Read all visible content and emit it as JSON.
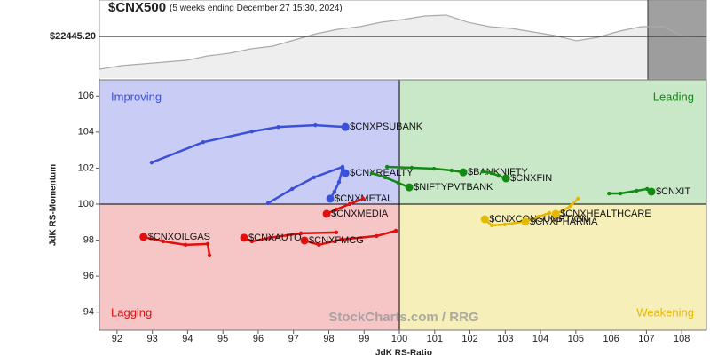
{
  "chart_data": [
    {
      "type": "line",
      "title": "$CNX500",
      "subtitle": "(5 weeks ending December 27 15:30, 2024)",
      "values": [
        21780,
        21852,
        21888,
        21924,
        21960,
        22051,
        22105,
        22195,
        22249,
        22375,
        22501,
        22591,
        22645,
        22735,
        22790,
        22862,
        22880,
        22735,
        22645,
        22609,
        22537,
        22465,
        22358,
        22429,
        22555,
        22645,
        22645,
        22429,
        22465
      ],
      "ylim": [
        21600,
        23150
      ],
      "reference_line": {
        "value": 22445.2,
        "label": "$22445.20"
      },
      "color": "#aaaaaa"
    },
    {
      "type": "rrg",
      "xlabel": "JdK RS-Ratio",
      "ylabel": "JdK RS-Momentum",
      "xlim": [
        91.5,
        108.7
      ],
      "ylim": [
        93,
        106.9
      ],
      "center": [
        100,
        100
      ],
      "xticks": [
        92,
        93,
        94,
        95,
        96,
        97,
        98,
        99,
        100,
        101,
        102,
        103,
        104,
        105,
        106,
        107,
        108
      ],
      "yticks": [
        94,
        96,
        98,
        100,
        102,
        104,
        106
      ],
      "quadrants": [
        {
          "name": "Improving",
          "color": "#c9cdf5",
          "text_color": "#3b4fd8"
        },
        {
          "name": "Leading",
          "color": "#c8e8c8",
          "text_color": "#138a13"
        },
        {
          "name": "Lagging",
          "color": "#f6c5c5",
          "text_color": "#e01010"
        },
        {
          "name": "Weakening",
          "color": "#f7efb9",
          "text_color": "#e6b800"
        }
      ],
      "watermark": "StockCharts.com / RRG",
      "series": [
        {
          "name": "$CNXPSUBANK",
          "color": "#3b4fd8",
          "x": [
            92.98,
            94.44,
            95.82,
            96.57,
            97.62,
            98.47
          ],
          "values": [
            102.31,
            103.44,
            104.03,
            104.28,
            104.38,
            104.28
          ]
        },
        {
          "name": "$CNXREALTY",
          "color": "#3b4fd8",
          "x": [
            96.28,
            96.96,
            97.58,
            98.39,
            98.47
          ],
          "values": [
            100.05,
            100.84,
            101.48,
            102.07,
            101.72
          ]
        },
        {
          "name": "$CNXMETAL",
          "color": "#3b4fd8",
          "x": [
            98.39,
            98.29,
            98.16,
            98.04
          ],
          "values": [
            101.97,
            101.23,
            100.69,
            100.3
          ]
        },
        {
          "name": "$CNXMEDIA",
          "color": "#e01010",
          "x": [
            98.97,
            98.59,
            98.21,
            97.94
          ],
          "values": [
            100.3,
            100,
            99.7,
            99.46
          ]
        },
        {
          "name": "$CNXOILGAS",
          "color": "#e01010",
          "x": [
            94.62,
            94.57,
            93.94,
            93.31,
            92.75
          ],
          "values": [
            97.15,
            97.79,
            97.74,
            97.93,
            98.18
          ]
        },
        {
          "name": "$CNXAUTO",
          "color": "#e01010",
          "x": [
            98.21,
            97.21,
            96.33,
            95.82,
            95.6
          ],
          "values": [
            98.43,
            98.38,
            98.13,
            97.93,
            98.13
          ]
        },
        {
          "name": "$CNXFMCG",
          "color": "#e01010",
          "x": [
            99.9,
            99.35,
            98.34,
            97.72,
            97.31
          ],
          "values": [
            98.52,
            98.23,
            98.03,
            97.74,
            97.98
          ]
        },
        {
          "name": "$BANKNIFTY",
          "color": "#138a13",
          "x": [
            99.65,
            100.35,
            100.98,
            101.48,
            101.81
          ],
          "values": [
            102.07,
            102.02,
            101.97,
            101.87,
            101.77
          ]
        },
        {
          "name": "$CNXFIN",
          "color": "#138a13",
          "x": [
            102.36,
            102.61,
            102.82,
            103.02
          ],
          "values": [
            101.82,
            101.72,
            101.57,
            101.43
          ]
        },
        {
          "name": "$NIFTYPVTBANK",
          "color": "#138a13",
          "x": [
            99.22,
            99.6,
            99.97,
            100.28
          ],
          "values": [
            101.72,
            101.48,
            101.18,
            100.93
          ]
        },
        {
          "name": "$CNXIT",
          "color": "#138a13",
          "x": [
            105.94,
            106.26,
            106.72,
            107.02,
            107.14
          ],
          "values": [
            100.59,
            100.59,
            100.74,
            100.84,
            100.69
          ]
        },
        {
          "name": "$CNXCONSUMPTION",
          "color": "#e6b800",
          "x": [
            103.5,
            102.99,
            102.62,
            102.42
          ],
          "values": [
            99.02,
            98.87,
            98.82,
            99.16
          ]
        },
        {
          "name": "$CNXPHARMA",
          "color": "#e6b800",
          "x": [
            104.25,
            103.95,
            103.75,
            103.57
          ],
          "values": [
            99.51,
            99.3,
            99.15,
            99.02
          ]
        },
        {
          "name": "$CNXHEALTHCARE",
          "color": "#e6b800",
          "x": [
            105.06,
            104.85,
            104.6,
            104.43
          ],
          "values": [
            100.3,
            99.9,
            99.6,
            99.46
          ]
        }
      ]
    }
  ]
}
